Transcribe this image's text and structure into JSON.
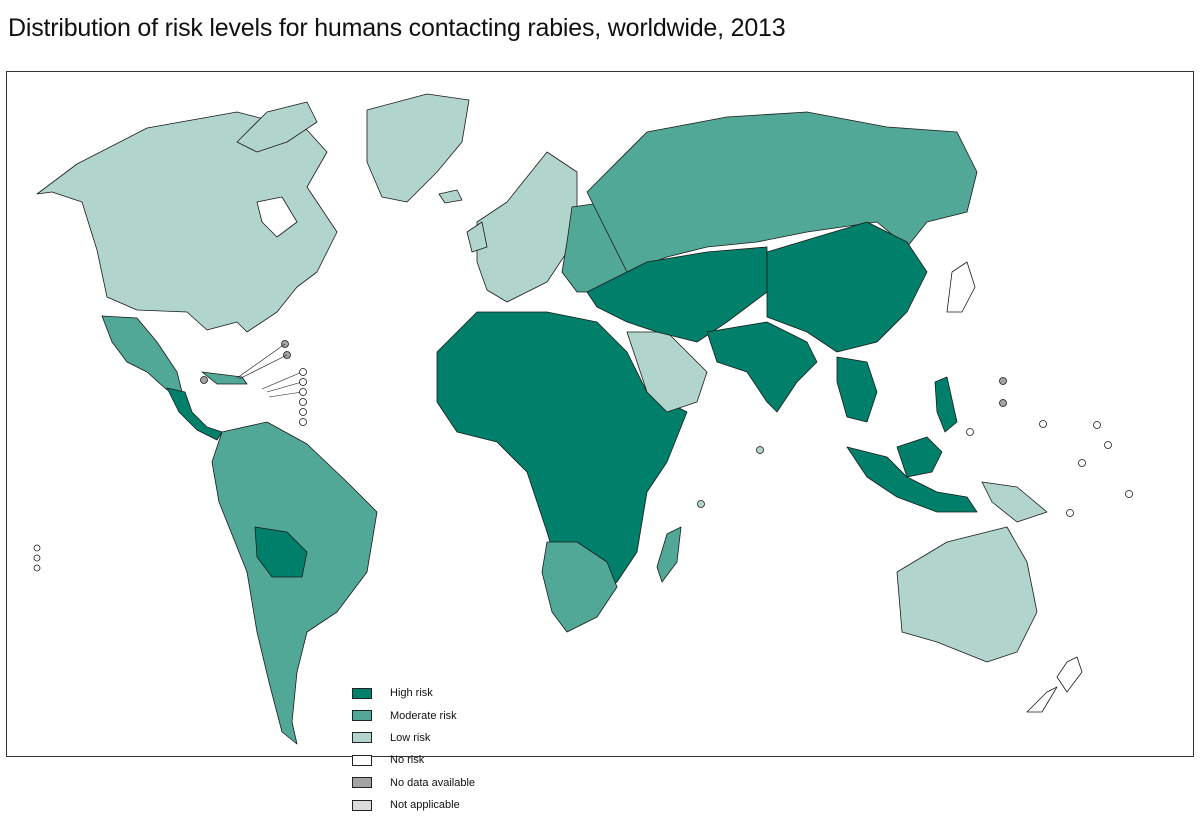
{
  "title": "Distribution of risk levels for humans contacting rabies, worldwide, 2013",
  "colors": {
    "high": "#00806a",
    "moderate": "#52a897",
    "low": "#b1d5cc",
    "none": "#ffffff",
    "nodata": "#a3a3a3",
    "na": "#dcdcdc",
    "outline": "#1a1a1a"
  },
  "legend": [
    {
      "key": "high",
      "label": "High risk",
      "color": "#00806a"
    },
    {
      "key": "moderate",
      "label": "Moderate risk",
      "color": "#52a897"
    },
    {
      "key": "low",
      "label": "Low risk",
      "color": "#b1d5cc"
    },
    {
      "key": "none",
      "label": "No risk",
      "color": "#ffffff"
    },
    {
      "key": "nodata",
      "label": "No data available",
      "color": "#a3a3a3"
    },
    {
      "key": "na",
      "label": "Not applicable",
      "color": "#dcdcdc"
    }
  ],
  "regions": [
    {
      "name": "North America",
      "risk": "low"
    },
    {
      "name": "Greenland",
      "risk": "low"
    },
    {
      "name": "Mexico",
      "risk": "moderate"
    },
    {
      "name": "Central America",
      "risk": "high"
    },
    {
      "name": "South America",
      "risk": "moderate"
    },
    {
      "name": "Bolivia",
      "risk": "high"
    },
    {
      "name": "Western Europe",
      "risk": "low"
    },
    {
      "name": "Eastern Europe",
      "risk": "moderate"
    },
    {
      "name": "Russia",
      "risk": "moderate"
    },
    {
      "name": "Africa",
      "risk": "high"
    },
    {
      "name": "Southern Africa",
      "risk": "moderate"
    },
    {
      "name": "Madagascar",
      "risk": "moderate"
    },
    {
      "name": "Arabian Peninsula",
      "risk": "low"
    },
    {
      "name": "Central Asia",
      "risk": "high"
    },
    {
      "name": "South Asia",
      "risk": "high"
    },
    {
      "name": "China",
      "risk": "high"
    },
    {
      "name": "Southeast Asia",
      "risk": "high"
    },
    {
      "name": "Japan",
      "risk": "none"
    },
    {
      "name": "Australia",
      "risk": "low"
    },
    {
      "name": "New Zealand",
      "risk": "none"
    },
    {
      "name": "Papua New Guinea",
      "risk": "low"
    }
  ]
}
